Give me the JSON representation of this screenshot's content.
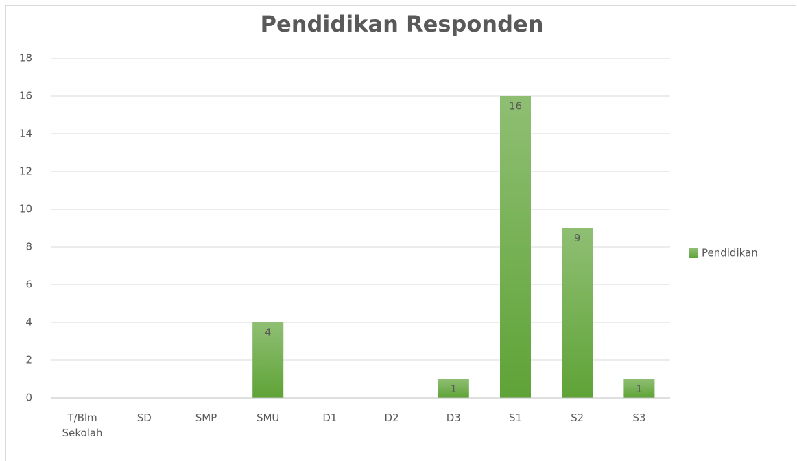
{
  "chart_data": {
    "type": "bar",
    "title": "Pendidikan Responden",
    "categories": [
      "T/Blm Sekolah",
      "SD",
      "SMP",
      "SMU",
      "D1",
      "D2",
      "D3",
      "S1",
      "S2",
      "S3"
    ],
    "series": [
      {
        "name": "Pendidikan",
        "color": "#5fa337",
        "values": [
          0,
          0,
          0,
          4,
          0,
          0,
          1,
          16,
          9,
          1
        ]
      }
    ],
    "ylim": [
      0,
      18
    ],
    "yticks": [
      0,
      2,
      4,
      6,
      8,
      10,
      12,
      14,
      16,
      18
    ],
    "grid": true,
    "legend": "right"
  }
}
